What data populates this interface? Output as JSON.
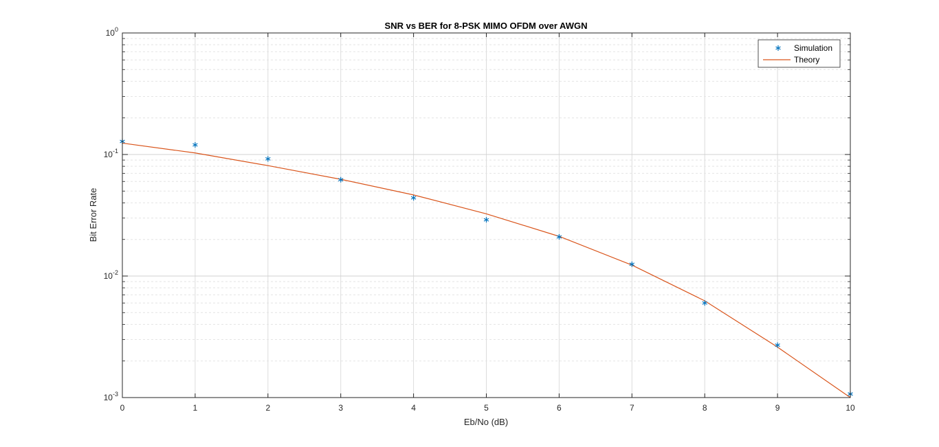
{
  "chart_data": {
    "type": "line",
    "title": "SNR vs BER for 8-PSK MIMO OFDM over AWGN",
    "xlabel": "Eb/No (dB)",
    "ylabel": "Bit Error Rate",
    "xlim": [
      0,
      10
    ],
    "ylim": [
      0.001,
      1
    ],
    "yscale": "log",
    "grid": true,
    "minor_grid": true,
    "legend_position": "top-right",
    "x_ticks": [
      "0",
      "1",
      "2",
      "3",
      "4",
      "5",
      "6",
      "7",
      "8",
      "9",
      "10"
    ],
    "y_ticks": [
      {
        "base": "10",
        "exp": "-3",
        "value": 0.001
      },
      {
        "base": "10",
        "exp": "-2",
        "value": 0.01
      },
      {
        "base": "10",
        "exp": "-1",
        "value": 0.1
      },
      {
        "base": "10",
        "exp": "0",
        "value": 1
      }
    ],
    "series": [
      {
        "name": "Simulation",
        "style": "marker",
        "marker": "*",
        "color": "#0072BD",
        "x": [
          0,
          1,
          2,
          3,
          4,
          5,
          6,
          7,
          8,
          9,
          10
        ],
        "y": [
          0.128,
          0.12,
          0.092,
          0.062,
          0.044,
          0.029,
          0.021,
          0.0125,
          0.006,
          0.0027,
          0.00107
        ]
      },
      {
        "name": "Theory",
        "style": "line",
        "color": "#D95319",
        "x": [
          0,
          1,
          2,
          3,
          4,
          5,
          6,
          7,
          8,
          9,
          10
        ],
        "y": [
          0.124,
          0.103,
          0.081,
          0.0625,
          0.0465,
          0.0325,
          0.0212,
          0.0123,
          0.00625,
          0.0026,
          0.001
        ]
      }
    ]
  }
}
